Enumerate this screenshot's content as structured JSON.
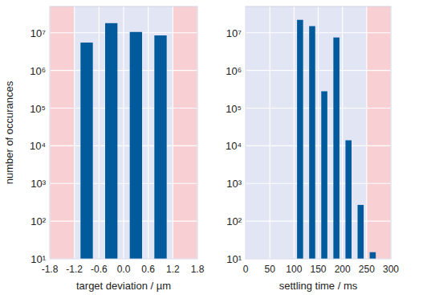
{
  "chart_data": [
    {
      "type": "histogram",
      "x_label": "target deviation / µm",
      "y_label": "number of occurances",
      "bins": [
        -1.2,
        -0.6,
        0,
        0.6,
        1.2
      ],
      "values": [
        5500000,
        18000000,
        10500000,
        8500000
      ],
      "color": "#005a9c",
      "log": "y",
      "grid": true,
      "xlim": [
        -1.8,
        1.8
      ],
      "xticks": [
        -1.8,
        -1.2,
        -0.6,
        {
          "value": 0,
          "label": "0.0"
        },
        0.6,
        1.2,
        1.8
      ],
      "ylim": [
        10,
        50000000
      ],
      "yticks": [
        {
          "value": 10,
          "label": "10¹"
        },
        {
          "value": 100,
          "label": "10²"
        },
        {
          "value": 1000,
          "label": "10³"
        },
        {
          "value": 10000,
          "label": "10⁴"
        },
        {
          "value": 100000,
          "label": "10⁵"
        },
        {
          "value": 1000000,
          "label": "10⁶"
        },
        {
          "value": 10000000,
          "label": "10⁷"
        }
      ],
      "limit_regions": [
        [
          -1.8,
          -1.2
        ],
        [
          1.2,
          1.8
        ]
      ]
    },
    {
      "type": "histogram",
      "x_label": "settling time / ms",
      "bins": [
        100,
        125,
        150,
        175,
        200,
        225,
        250,
        275
      ],
      "values": [
        22000000,
        15000000,
        280000,
        7500000,
        14000,
        270,
        15
      ],
      "color": "#005a9c",
      "log": "y",
      "grid": true,
      "xlim": [
        0,
        300
      ],
      "xticks": [
        0,
        50,
        100,
        150,
        200,
        250,
        300
      ],
      "ylim": [
        10,
        50000000
      ],
      "yticks": [
        {
          "value": 10,
          "label": "10¹"
        },
        {
          "value": 100,
          "label": "10²"
        },
        {
          "value": 1000,
          "label": "10³"
        },
        {
          "value": 10000,
          "label": "10⁴"
        },
        {
          "value": 100000,
          "label": "10⁵"
        },
        {
          "value": 1000000,
          "label": "10⁶"
        },
        {
          "value": 10000000,
          "label": "10⁷"
        }
      ],
      "limit_regions": [
        [
          250,
          300
        ]
      ]
    }
  ]
}
